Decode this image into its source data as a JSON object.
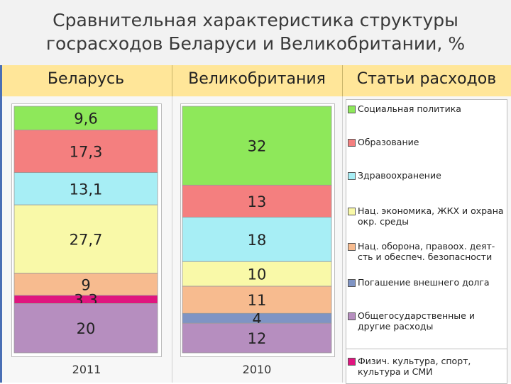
{
  "title_line1": "Сравнительная характеристика структуры",
  "title_line2": "госрасходов Беларуси и Великобритании, %",
  "headers": {
    "belarus": "Беларусь",
    "uk": "Великобритания",
    "items": "Статьи расходов"
  },
  "chart_data": {
    "type": "bar",
    "stacked": true,
    "categories": [
      "Беларусь",
      "Великобритания"
    ],
    "years": [
      "2011",
      "2010"
    ],
    "series": [
      {
        "name": "Социальная политика",
        "color": "#8ee85a",
        "values": [
          9.6,
          32
        ]
      },
      {
        "name": "Образование",
        "color": "#f47f7f",
        "values": [
          17.3,
          13
        ]
      },
      {
        "name": "Здравоохранение",
        "color": "#a7eef5",
        "values": [
          13.1,
          18
        ]
      },
      {
        "name": "Нац. экономика, ЖКХ и охрана окр. среды",
        "color": "#f9f9a8",
        "values": [
          27.7,
          10
        ]
      },
      {
        "name": "Нац. оборона, правоох. деят-сть и обеспеч. безопасности",
        "color": "#f7bb8f",
        "values": [
          9,
          11
        ]
      },
      {
        "name": "Погашение внешнего долга",
        "color": "#7f94c4",
        "values": [
          0,
          4
        ]
      },
      {
        "name": "Общегосударственные и другие расходы",
        "color": "#b68ebf",
        "values": [
          20,
          12
        ]
      },
      {
        "name": "Физич. культура, спорт, культура и СМИ",
        "color": "#e0157f",
        "values": [
          3.3,
          0
        ]
      }
    ],
    "bar_labels": [
      [
        "9,6",
        "17,3",
        "13,1",
        "27,7",
        "9",
        "",
        "20",
        "3,3"
      ],
      [
        "32",
        "13",
        "18",
        "10",
        "11",
        "4",
        "12",
        ""
      ]
    ]
  }
}
